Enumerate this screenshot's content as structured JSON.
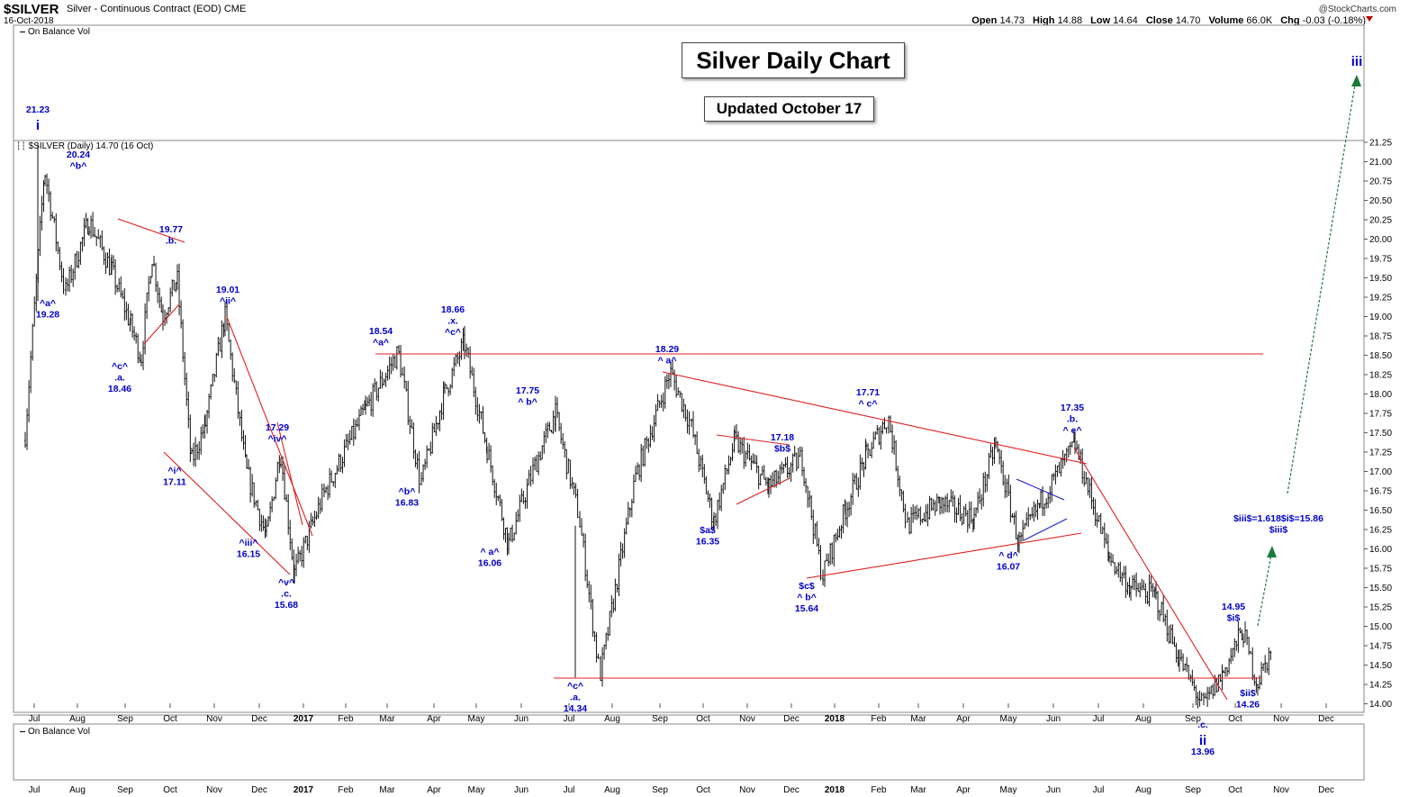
{
  "header": {
    "symbol": "$SILVER",
    "description": "Silver - Continuous Contract (EOD) CME",
    "date": "16-Oct-2018",
    "brand": "@StockCharts.com",
    "ohlc": {
      "open_label": "Open",
      "open": "14.73",
      "high_label": "High",
      "high": "14.88",
      "low_label": "Low",
      "low": "14.64",
      "close_label": "Close",
      "close": "14.70",
      "volume_label": "Volume",
      "volume": "66.0K",
      "chg_label": "Chg",
      "chg": "-0.03 (-0.18%)"
    }
  },
  "panels": {
    "top_indicator": "On Balance Vol",
    "price_legend": "$SILVER (Daily) 14.70 (16 Oct)",
    "bottom_indicator": "On Balance Vol"
  },
  "title_box": "Silver Daily Chart",
  "updated_box": "Updated October 17",
  "colors": {
    "price": "#000000",
    "trend_lines": "#e02020",
    "wave_labels": "#0000cc",
    "projection": "#1a7a3a"
  },
  "chart_data": {
    "type": "bar",
    "title": "Silver Daily Chart",
    "x_axis_labels": [
      "Jul",
      "Aug",
      "Sep",
      "Oct",
      "Nov",
      "Dec",
      "2017",
      "Feb",
      "Mar",
      "Apr",
      "May",
      "Jun",
      "Jul",
      "Aug",
      "Sep",
      "Oct",
      "Nov",
      "Dec",
      "2018",
      "Feb",
      "Mar",
      "Apr",
      "May",
      "Jun",
      "Jul",
      "Aug",
      "Sep",
      "Oct",
      "Nov",
      "Dec"
    ],
    "y_ticks": [
      "14.00",
      "14.25",
      "14.50",
      "14.75",
      "15.00",
      "15.25",
      "15.50",
      "15.75",
      "16.00",
      "16.25",
      "16.50",
      "16.75",
      "17.00",
      "17.25",
      "17.50",
      "17.75",
      "18.00",
      "18.25",
      "18.50",
      "18.75",
      "19.00",
      "19.25",
      "19.50",
      "19.75",
      "20.00",
      "20.25",
      "20.50",
      "20.75",
      "21.00",
      "21.25"
    ],
    "ylim": [
      14.0,
      21.25
    ],
    "grid": false,
    "price_path": [
      [
        "Jun-2016",
        17.4
      ],
      [
        "Jul-2016",
        20.9
      ],
      [
        "Jul-2016",
        19.3
      ],
      [
        "Aug-2016",
        20.24
      ],
      [
        "Aug-2016",
        19.6
      ],
      [
        "Sep-2016",
        18.9
      ],
      [
        "Sep-2016",
        18.46
      ],
      [
        "Sep-2016",
        19.8
      ],
      [
        "Sep-2016",
        19.0
      ],
      [
        "Oct-2016",
        19.5
      ],
      [
        "Oct-2016",
        17.11
      ],
      [
        "Oct-2016",
        17.6
      ],
      [
        "Nov-2016",
        19.01
      ],
      [
        "Nov-2016",
        17.0
      ],
      [
        "Dec-2016",
        16.15
      ],
      [
        "Dec-2016",
        17.29
      ],
      [
        "Dec-2016",
        15.68
      ],
      [
        "Jan-2017",
        16.7
      ],
      [
        "Feb-2017",
        17.8
      ],
      [
        "Mar-2017",
        18.54
      ],
      [
        "Mar-2017",
        16.83
      ],
      [
        "Apr-2017",
        18.0
      ],
      [
        "Apr-2017",
        18.66
      ],
      [
        "May-2017",
        17.3
      ],
      [
        "May-2017",
        16.06
      ],
      [
        "Jun-2017",
        17.0
      ],
      [
        "Jun-2017",
        17.75
      ],
      [
        "Jul-2017",
        16.4
      ],
      [
        "Jul-2017",
        14.34
      ],
      [
        "Aug-2017",
        16.9
      ],
      [
        "Sep-2017",
        18.29
      ],
      [
        "Sep-2017",
        17.6
      ],
      [
        "Oct-2017",
        16.35
      ],
      [
        "Oct-2017",
        17.4
      ],
      [
        "Nov-2017",
        16.8
      ],
      [
        "Dec-2017",
        17.18
      ],
      [
        "Dec-2017",
        15.64
      ],
      [
        "Jan-2018",
        16.5
      ],
      [
        "Jan-2018",
        17.2
      ],
      [
        "Feb-2018",
        17.71
      ],
      [
        "Feb-2018",
        16.3
      ],
      [
        "Mar-2018",
        16.6
      ],
      [
        "Apr-2018",
        16.4
      ],
      [
        "Apr-2018",
        17.35
      ],
      [
        "May-2018",
        16.07
      ],
      [
        "May-2018",
        16.6
      ],
      [
        "Jun-2018",
        17.35
      ],
      [
        "Jul-2018",
        15.9
      ],
      [
        "Jul-2018",
        15.5
      ],
      [
        "Aug-2018",
        15.4
      ],
      [
        "Aug-2018",
        14.6
      ],
      [
        "Sep-2018",
        13.96
      ],
      [
        "Sep-2018",
        14.4
      ],
      [
        "Oct-2018",
        14.95
      ],
      [
        "Oct-2018",
        14.26
      ],
      [
        "Oct-2018",
        14.7
      ]
    ],
    "wave_labels": [
      {
        "text": [
          "21.23",
          "i"
        ],
        "price": 21.23
      },
      {
        "text": [
          "20.24",
          "^b^"
        ],
        "price": 20.24
      },
      {
        "text": [
          "^a^",
          "19.28"
        ],
        "price": 19.28
      },
      {
        "text": [
          "19.77",
          ".b."
        ],
        "price": 19.77
      },
      {
        "text": [
          "^c^",
          ".a.",
          "18.46"
        ],
        "price": 18.46
      },
      {
        "text": [
          "19.01",
          "^ii^"
        ],
        "price": 19.01
      },
      {
        "text": [
          "^i^",
          "17.11"
        ],
        "price": 17.11
      },
      {
        "text": [
          "17.29",
          "^iv^"
        ],
        "price": 17.29
      },
      {
        "text": [
          "^iii^",
          "16.15"
        ],
        "price": 16.15
      },
      {
        "text": [
          "^v^",
          ".c.",
          "15.68"
        ],
        "price": 15.68
      },
      {
        "text": [
          "18.54",
          "^a^"
        ],
        "price": 18.54
      },
      {
        "text": [
          "^b^",
          "16.83"
        ],
        "price": 16.83
      },
      {
        "text": [
          "18.66",
          ".x.",
          "^c^"
        ],
        "price": 18.66
      },
      {
        "text": [
          "^ a^",
          "16.06"
        ],
        "price": 16.06
      },
      {
        "text": [
          "17.75",
          "^ b^"
        ],
        "price": 17.75
      },
      {
        "text": [
          "^c^",
          ".a.",
          "14.34"
        ],
        "price": 14.34
      },
      {
        "text": [
          "18.29",
          "^ a^"
        ],
        "price": 18.29
      },
      {
        "text": [
          "$a$",
          "16.35"
        ],
        "price": 16.35
      },
      {
        "text": [
          "17.18",
          "$b$"
        ],
        "price": 17.18
      },
      {
        "text": [
          "$c$",
          "^ b^",
          "15.64"
        ],
        "price": 15.64
      },
      {
        "text": [
          "17.71",
          "^ c^"
        ],
        "price": 17.71
      },
      {
        "text": [
          "^ d^",
          "16.07"
        ],
        "price": 16.07
      },
      {
        "text": [
          "17.35",
          ".b.",
          "^ e^"
        ],
        "price": 17.35
      },
      {
        "text": [
          "14.95",
          "$i$"
        ],
        "price": 14.95
      },
      {
        "text": [
          "$ii$",
          "14.26"
        ],
        "price": 14.26
      },
      {
        "text": [
          ".c.",
          "ii",
          "13.96"
        ],
        "price": 13.96
      },
      {
        "text": [
          "$iii$=1.618$i$=15.86",
          "$iii$"
        ],
        "price": 15.86
      },
      {
        "text": [
          "iii"
        ],
        "price": null
      }
    ],
    "horizontal_lines": [
      18.54,
      14.34
    ]
  }
}
